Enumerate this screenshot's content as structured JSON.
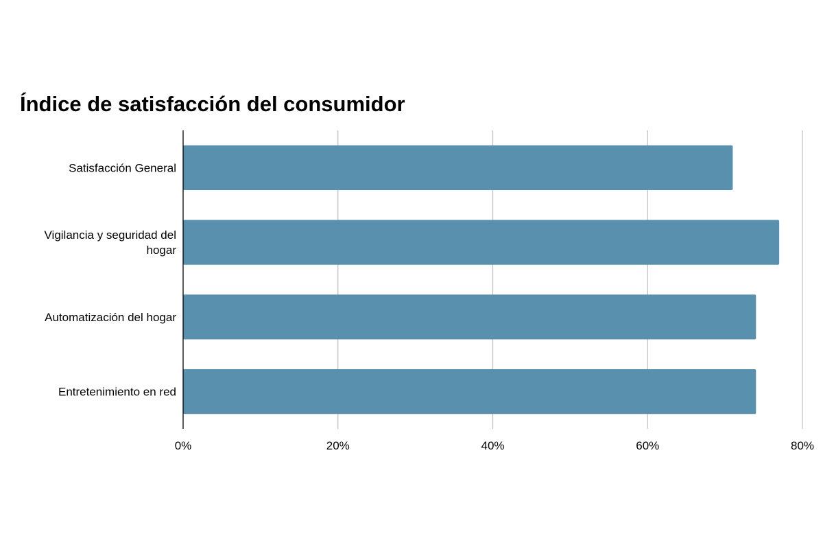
{
  "chart_data": {
    "type": "bar",
    "orientation": "horizontal",
    "title": "Índice de satisfacción del consumidor",
    "categories": [
      [
        "Satisfacción General"
      ],
      [
        "Vigilancia y seguridad del",
        "hogar"
      ],
      [
        "Automatización del hogar"
      ],
      [
        "Entretenimiento en red"
      ]
    ],
    "values": [
      71,
      77,
      74,
      74
    ],
    "value_unit": "%",
    "xlim": [
      0,
      80
    ],
    "x_ticks": [
      0,
      20,
      40,
      60,
      80
    ],
    "x_tick_labels": [
      "0%",
      "20%",
      "40%",
      "60%",
      "80%"
    ],
    "xlabel": "",
    "ylabel": "",
    "grid": "vertical",
    "legend": "none",
    "bar_color": "#5990ae",
    "grid_color": "#bdbdbd",
    "axis_color": "#000000"
  }
}
